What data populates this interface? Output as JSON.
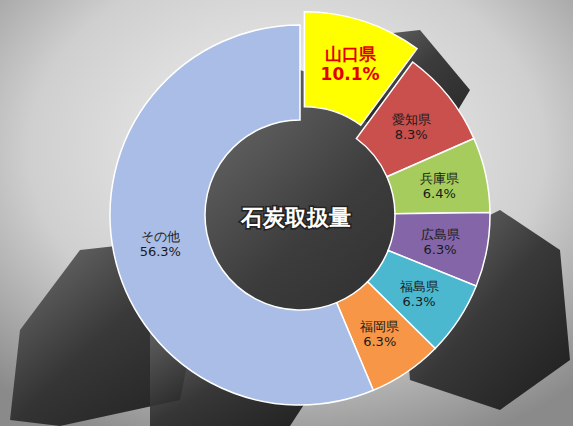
{
  "chart_data": {
    "type": "pie",
    "title": "石炭取扱量",
    "categories": [
      "山口県",
      "愛知県",
      "兵庫県",
      "広島県",
      "福島県",
      "福岡県",
      "その他"
    ],
    "values": [
      10.1,
      8.3,
      6.4,
      6.3,
      6.3,
      6.3,
      56.3
    ],
    "value_labels": [
      "10.1%",
      "8.3%",
      "6.4%",
      "6.3%",
      "6.3%",
      "6.3%",
      "56.3%"
    ],
    "colors": [
      "#ffff00",
      "#c9504d",
      "#a5cc5c",
      "#8466a8",
      "#4bb8d0",
      "#f79646",
      "#a9bde6"
    ],
    "data_labels": true
  }
}
